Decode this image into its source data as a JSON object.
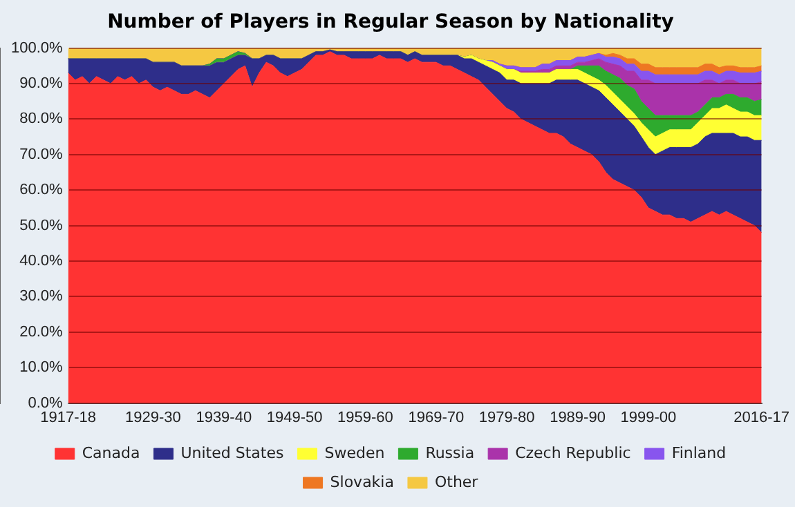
{
  "chart_data": {
    "type": "area",
    "stacked": true,
    "title": "Number of Players in Regular Season by Nationality",
    "categories": [
      "1917-18",
      null,
      null,
      null,
      null,
      null,
      null,
      null,
      null,
      null,
      null,
      null,
      "1929-30",
      null,
      null,
      null,
      null,
      null,
      null,
      null,
      null,
      null,
      "1939-40",
      null,
      null,
      null,
      null,
      null,
      null,
      null,
      null,
      null,
      "1949-50",
      null,
      null,
      null,
      null,
      null,
      null,
      null,
      null,
      null,
      "1959-60",
      null,
      null,
      null,
      null,
      null,
      null,
      null,
      null,
      null,
      "1969-70",
      null,
      null,
      null,
      null,
      null,
      null,
      null,
      null,
      null,
      "1979-80",
      null,
      null,
      null,
      null,
      null,
      null,
      null,
      null,
      null,
      "1989-90",
      null,
      null,
      null,
      null,
      null,
      null,
      null,
      null,
      null,
      "1999-00",
      null,
      null,
      null,
      null,
      null,
      null,
      null,
      null,
      null,
      null,
      null,
      null,
      null,
      null,
      null,
      "2016-17"
    ],
    "series": [
      {
        "name": "Canada",
        "color": "#ff3333",
        "values": [
          93,
          91,
          92,
          90,
          92,
          91,
          90,
          92,
          91,
          92,
          90,
          91,
          89,
          88,
          89,
          88,
          87,
          87,
          88,
          87,
          86,
          88,
          90,
          92,
          94,
          95,
          89,
          93,
          96,
          95,
          93,
          92,
          93,
          94,
          96,
          98,
          98,
          99,
          98,
          98,
          97,
          97,
          97,
          97,
          98,
          97,
          97,
          97,
          96,
          97,
          96,
          96,
          96,
          95,
          95,
          94,
          93,
          92,
          91,
          89,
          87,
          85,
          83,
          82,
          80,
          79,
          78,
          77,
          76,
          76,
          75,
          73,
          72,
          71,
          70,
          68,
          65,
          63,
          62,
          61,
          60,
          58,
          55,
          54,
          53,
          53,
          52,
          52,
          51,
          52,
          53,
          54,
          53,
          54,
          53,
          52,
          51,
          50,
          48
        ]
      },
      {
        "name": "United States",
        "color": "#2e2e8a",
        "values": [
          4,
          6,
          5,
          7,
          5,
          6,
          7,
          5,
          6,
          5,
          7,
          6,
          7,
          8,
          7,
          8,
          8,
          8,
          7,
          8,
          9,
          8,
          6,
          5,
          4,
          3,
          8,
          4,
          2,
          3,
          4,
          5,
          4,
          3,
          2,
          1,
          1,
          0.5,
          1,
          1,
          2,
          2,
          2,
          2,
          1,
          2,
          2,
          2,
          2,
          2,
          2,
          2,
          2,
          3,
          3,
          4,
          4,
          5,
          5,
          6,
          7,
          8,
          8,
          9,
          10,
          11,
          12,
          13,
          14,
          15,
          16,
          18,
          19,
          19,
          19,
          20,
          21,
          21,
          20,
          19,
          18,
          17,
          17,
          16,
          18,
          19,
          20,
          20,
          21,
          21,
          22,
          22,
          23,
          22,
          23,
          23,
          24,
          24,
          26
        ]
      },
      {
        "name": "Sweden",
        "color": "#ffff33",
        "values": [
          0,
          0,
          0,
          0,
          0,
          0,
          0,
          0,
          0,
          0,
          0,
          0,
          0,
          0,
          0,
          0,
          0,
          0,
          0,
          0,
          0,
          0,
          0,
          0,
          0,
          0,
          0,
          0,
          0,
          0,
          0,
          0,
          0,
          0,
          0,
          0,
          0,
          0,
          0,
          0,
          0,
          0,
          0,
          0,
          0,
          0,
          0,
          0,
          0,
          0,
          0,
          0,
          0,
          0,
          0,
          0,
          0.5,
          1,
          1,
          1.5,
          2,
          2,
          3,
          3,
          3,
          3,
          3,
          3,
          3,
          3,
          3,
          3,
          3,
          3,
          3,
          3,
          3.5,
          3.5,
          3.5,
          3.5,
          3.5,
          4,
          5,
          5,
          5,
          5,
          5,
          5,
          5,
          6,
          6,
          7,
          7,
          8,
          7,
          7,
          7,
          7,
          7
        ]
      },
      {
        "name": "Russia",
        "color": "#2eaa2e",
        "values": [
          0,
          0,
          0,
          0,
          0,
          0,
          0,
          0,
          0,
          0,
          0,
          0,
          0,
          0,
          0,
          0,
          0,
          0,
          0,
          0,
          0.5,
          1,
          1,
          1,
          1,
          0.5,
          0,
          0,
          0,
          0,
          0,
          0,
          0,
          0,
          0,
          0,
          0,
          0,
          0,
          0,
          0,
          0,
          0,
          0,
          0,
          0,
          0,
          0,
          0,
          0,
          0,
          0,
          0,
          0,
          0,
          0,
          0,
          0,
          0,
          0,
          0,
          0,
          0,
          0,
          0,
          0,
          0,
          0,
          0,
          0,
          0,
          0,
          1,
          2,
          3,
          4,
          4,
          5,
          6,
          6,
          7,
          6,
          6,
          6,
          5,
          4,
          4,
          4,
          4,
          3,
          3,
          3,
          3,
          3,
          4,
          4,
          4,
          4,
          4.5
        ]
      },
      {
        "name": "Czech Republic",
        "color": "#aa33aa",
        "values": [
          0,
          0,
          0,
          0,
          0,
          0,
          0,
          0,
          0,
          0,
          0,
          0,
          0,
          0,
          0,
          0,
          0,
          0,
          0,
          0,
          0,
          0,
          0,
          0,
          0,
          0,
          0,
          0,
          0,
          0,
          0,
          0,
          0,
          0,
          0,
          0,
          0,
          0,
          0,
          0,
          0,
          0,
          0,
          0,
          0,
          0,
          0,
          0,
          0,
          0,
          0,
          0,
          0,
          0,
          0,
          0,
          0,
          0,
          0,
          0,
          0,
          0,
          0,
          0,
          0.5,
          0.5,
          0.5,
          1,
          1,
          1,
          1,
          1,
          1,
          1,
          1.5,
          2,
          2.5,
          3,
          3.5,
          4,
          5,
          6,
          8,
          9,
          9,
          9,
          9,
          9,
          9,
          8,
          7,
          5,
          4,
          4,
          4,
          4,
          4,
          5,
          5
        ]
      },
      {
        "name": "Finland",
        "color": "#8855ee",
        "values": [
          0,
          0,
          0,
          0,
          0,
          0,
          0,
          0,
          0,
          0,
          0,
          0,
          0,
          0,
          0,
          0,
          0,
          0,
          0,
          0,
          0,
          0,
          0,
          0,
          0,
          0,
          0,
          0,
          0,
          0,
          0,
          0,
          0,
          0,
          0,
          0,
          0,
          0,
          0,
          0,
          0,
          0,
          0,
          0,
          0,
          0,
          0,
          0,
          0,
          0,
          0,
          0,
          0,
          0,
          0,
          0,
          0,
          0,
          0,
          0,
          0.5,
          0.5,
          1,
          1,
          1,
          1,
          1,
          1.5,
          1.5,
          1.5,
          1.5,
          1.5,
          1.5,
          1.5,
          1.5,
          1.5,
          1.5,
          2,
          2,
          2,
          2,
          2.5,
          2.5,
          2.5,
          2.5,
          2.5,
          2.5,
          2.5,
          2.5,
          2.5,
          2.5,
          2.5,
          2.5,
          2.5,
          2.5,
          3,
          3,
          3,
          3
        ]
      },
      {
        "name": "Slovakia",
        "color": "#ee7722",
        "values": [
          0,
          0,
          0,
          0,
          0,
          0,
          0,
          0,
          0,
          0,
          0,
          0,
          0,
          0,
          0,
          0,
          0,
          0,
          0,
          0,
          0,
          0,
          0,
          0,
          0,
          0,
          0,
          0,
          0,
          0,
          0,
          0,
          0,
          0,
          0,
          0,
          0,
          0,
          0,
          0,
          0,
          0,
          0,
          0,
          0,
          0,
          0,
          0,
          0,
          0,
          0,
          0,
          0,
          0,
          0,
          0,
          0,
          0,
          0,
          0,
          0,
          0,
          0,
          0,
          0,
          0,
          0,
          0,
          0,
          0,
          0,
          0,
          0,
          0,
          0,
          0,
          0.5,
          1,
          1,
          1.5,
          1.5,
          2,
          2,
          2,
          2,
          2,
          2,
          2,
          2,
          2,
          2,
          2,
          2,
          1.5,
          1.5,
          1.5,
          1.5,
          1.5,
          1.5
        ]
      },
      {
        "name": "Other",
        "color": "#f5c842",
        "values": [
          3,
          3,
          3,
          3,
          3,
          3,
          3,
          3,
          3,
          3,
          3,
          3,
          4,
          4,
          4,
          4,
          5,
          5,
          5,
          5,
          4.5,
          3,
          3,
          2,
          1,
          1.5,
          3,
          3,
          2,
          2,
          3,
          3,
          3,
          3,
          2,
          1,
          1,
          0.5,
          1,
          1,
          1,
          1,
          1,
          1,
          1,
          1,
          1,
          1,
          2,
          1,
          2,
          2,
          2,
          2,
          2,
          2,
          2.5,
          2,
          3,
          3.5,
          3.5,
          4.5,
          5,
          5,
          5.5,
          5.5,
          5.5,
          4.5,
          4.5,
          3.5,
          3.5,
          3.5,
          2.5,
          2.5,
          2,
          1.5,
          2,
          1.5,
          2,
          3,
          3,
          4.5,
          4.5,
          5.5,
          5.5,
          5.5,
          5.5,
          5.5,
          5.5,
          5.5,
          4.5,
          4.5,
          5.5,
          5,
          5,
          5.5,
          5.5,
          5.5,
          5
        ]
      }
    ],
    "ylim": [
      0,
      100
    ],
    "yticks": [
      {
        "value": 0,
        "label": "0.0%"
      },
      {
        "value": 10,
        "label": "10.0%"
      },
      {
        "value": 20,
        "label": "20.0%"
      },
      {
        "value": 30,
        "label": "30.0%"
      },
      {
        "value": 40,
        "label": "40.0%"
      },
      {
        "value": 50,
        "label": "50.0%"
      },
      {
        "value": 60,
        "label": "60.0%"
      },
      {
        "value": 70,
        "label": "70.0%"
      },
      {
        "value": 80,
        "label": "80.0%"
      },
      {
        "value": 90,
        "label": "90.0%"
      },
      {
        "value": 100,
        "label": "100.0%"
      }
    ],
    "grid": "y",
    "legend": "bottom"
  }
}
